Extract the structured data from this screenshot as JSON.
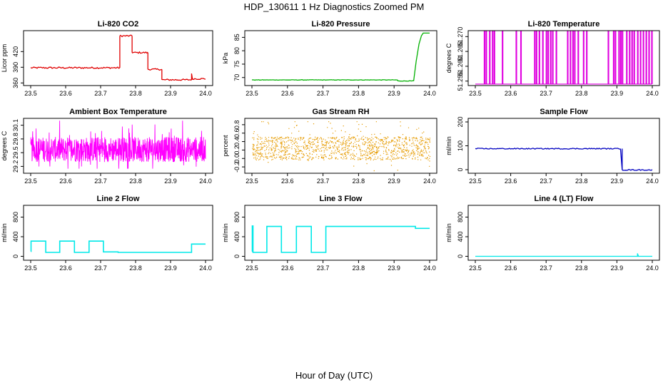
{
  "figure": {
    "title": "HDP_130611  1 Hz Diagnostics Zoomed PM",
    "xlabel": "Hour of Day (UTC)"
  },
  "chart_data": [
    {
      "id": "co2",
      "type": "line",
      "title": "Li-820 CO2",
      "ylabel": "Licor ppm",
      "color": "#e00000",
      "noise": 1.5,
      "xlim": [
        23.5,
        24.0
      ],
      "ylim": [
        355,
        460
      ],
      "xticks": [
        23.5,
        23.6,
        23.7,
        23.8,
        23.9,
        24.0
      ],
      "yticks": [
        360,
        390,
        420
      ],
      "ytick_labels": [
        "360",
        "390",
        "420"
      ],
      "segments": [
        [
          23.5,
          23.755,
          389
        ],
        [
          23.755,
          23.79,
          450
        ],
        [
          23.79,
          23.835,
          418
        ],
        [
          23.835,
          23.875,
          386
        ],
        [
          23.875,
          23.96,
          366
        ],
        [
          23.96,
          24.0,
          368
        ]
      ],
      "spikes": [
        [
          23.96,
          378
        ]
      ]
    },
    {
      "id": "pressure",
      "type": "line",
      "title": "Li-820 Pressure",
      "ylabel": "kPa",
      "color": "#00b000",
      "noise": 0.08,
      "xlim": [
        23.5,
        24.0
      ],
      "ylim": [
        67,
        87.5
      ],
      "xticks": [
        23.5,
        23.6,
        23.7,
        23.8,
        23.9,
        24.0
      ],
      "yticks": [
        70,
        75,
        80,
        85
      ],
      "ytick_labels": [
        "70",
        "75",
        "80",
        "85"
      ],
      "segments": [
        [
          23.5,
          23.91,
          69.1
        ],
        [
          23.91,
          23.955,
          68.7
        ]
      ],
      "ramp": [
        [
          23.955,
          68.7
        ],
        [
          23.962,
          76.0
        ],
        [
          23.97,
          82.5
        ],
        [
          23.977,
          85.6
        ],
        [
          23.982,
          86.6
        ],
        [
          24.0,
          86.6
        ]
      ]
    },
    {
      "id": "licor_temp",
      "type": "line",
      "title": "Li-820 Temperature",
      "ylabel": "degrees C",
      "color": "#e000e0",
      "xlim": [
        23.5,
        24.0
      ],
      "ylim": [
        51.2535,
        51.272
      ],
      "xticks": [
        23.5,
        23.6,
        23.7,
        23.8,
        23.9,
        24.0
      ],
      "yticks": [
        51.255,
        51.26,
        51.265,
        51.27
      ],
      "ytick_labels": [
        "51.255",
        "51.260",
        "51.265",
        "51.270"
      ],
      "base": 51.254,
      "top": 51.272,
      "pulses": [
        23.525,
        23.53,
        23.54,
        23.548,
        23.553,
        23.576,
        23.615,
        23.628,
        23.667,
        23.672,
        23.68,
        23.69,
        23.7,
        23.705,
        23.712,
        23.718,
        23.728,
        23.76,
        23.768,
        23.775,
        23.78,
        23.79,
        23.805,
        23.814,
        23.875,
        23.89,
        23.895,
        23.905,
        23.91,
        23.915,
        23.927,
        23.935,
        23.942,
        23.948,
        23.958,
        23.966,
        23.974,
        23.982,
        23.99,
        23.998
      ]
    },
    {
      "id": "box_temp",
      "type": "line",
      "title": "Ambient Box Temperature",
      "ylabel": "degrees C",
      "color": "#ff00ff",
      "xlim": [
        23.5,
        24.0
      ],
      "ylim": [
        29.05,
        30.25
      ],
      "xticks": [
        23.5,
        23.6,
        23.7,
        23.8,
        23.9,
        24.0
      ],
      "yticks": [
        29.2,
        29.5,
        29.8,
        30.1
      ],
      "ytick_labels": [
        "29.2",
        "29.5",
        "29.8",
        "30.1"
      ],
      "mean": 29.57,
      "noise_min": 29.15,
      "noise_max": 30.2
    },
    {
      "id": "rh",
      "type": "scatter",
      "title": "Gas Stream RH",
      "ylabel": "percent",
      "color": "#e69b00",
      "xlim": [
        23.5,
        24.0
      ],
      "ylim": [
        -0.35,
        0.95
      ],
      "xticks": [
        23.5,
        23.6,
        23.7,
        23.8,
        23.9,
        24.0
      ],
      "yticks": [
        -0.2,
        0.0,
        0.2,
        0.4,
        0.6,
        0.8
      ],
      "ytick_labels": [
        "-0.2",
        "0.0",
        "0.2",
        "0.4",
        "0.6",
        "0.8"
      ],
      "mean": 0.25,
      "noise_min": -0.28,
      "noise_max": 0.88
    },
    {
      "id": "sample_flow",
      "type": "line",
      "title": "Sample Flow",
      "ylabel": "ml/min",
      "color": "#0000c0",
      "noise": 2,
      "xlim": [
        23.5,
        24.0
      ],
      "ylim": [
        -15,
        215
      ],
      "xticks": [
        23.5,
        23.6,
        23.7,
        23.8,
        23.9,
        24.0
      ],
      "yticks": [
        0,
        100,
        200
      ],
      "ytick_labels": [
        "0",
        "100",
        "200"
      ],
      "segments": [
        [
          23.5,
          23.91,
          88
        ],
        [
          23.915,
          24.0,
          -1
        ]
      ],
      "ramp": [
        [
          23.91,
          88
        ],
        [
          23.915,
          -1
        ]
      ]
    },
    {
      "id": "line2",
      "type": "line",
      "title": "Line 2 Flow",
      "ylabel": "ml/min",
      "color": "#00e8e8",
      "noise": 3,
      "xlim": [
        23.5,
        24.0
      ],
      "ylim": [
        -80,
        1040
      ],
      "xticks": [
        23.5,
        23.6,
        23.7,
        23.8,
        23.9,
        24.0
      ],
      "yticks": [
        0,
        400,
        800
      ],
      "ytick_labels": [
        "0",
        "400",
        "800"
      ],
      "step": [
        [
          23.5,
          100
        ],
        [
          23.501,
          310
        ],
        [
          23.543,
          80
        ],
        [
          23.583,
          310
        ],
        [
          23.625,
          80
        ],
        [
          23.667,
          310
        ],
        [
          23.708,
          90
        ],
        [
          23.75,
          80
        ],
        [
          23.96,
          250
        ],
        [
          24.0,
          250
        ]
      ]
    },
    {
      "id": "line3",
      "type": "line",
      "title": "Line 3 Flow",
      "ylabel": "ml/min",
      "color": "#00e8e8",
      "noise": 3,
      "xlim": [
        23.5,
        24.0
      ],
      "ylim": [
        -80,
        1040
      ],
      "xticks": [
        23.5,
        23.6,
        23.7,
        23.8,
        23.9,
        24.0
      ],
      "yticks": [
        0,
        400,
        800
      ],
      "ytick_labels": [
        "0",
        "400",
        "800"
      ],
      "step": [
        [
          23.5,
          100
        ],
        [
          23.501,
          620
        ],
        [
          23.503,
          80
        ],
        [
          23.542,
          610
        ],
        [
          23.583,
          80
        ],
        [
          23.625,
          610
        ],
        [
          23.667,
          80
        ],
        [
          23.708,
          610
        ],
        [
          23.96,
          570
        ],
        [
          24.0,
          570
        ]
      ]
    },
    {
      "id": "line4",
      "type": "line",
      "title": "Line 4 (LT) Flow",
      "ylabel": "ml/min",
      "color": "#00e8e8",
      "noise": 0,
      "xlim": [
        23.5,
        24.0
      ],
      "ylim": [
        -80,
        1040
      ],
      "xticks": [
        23.5,
        23.6,
        23.7,
        23.8,
        23.9,
        24.0
      ],
      "yticks": [
        0,
        400,
        800
      ],
      "ytick_labels": [
        "0",
        "400",
        "800"
      ],
      "segments": [
        [
          23.5,
          24.0,
          0
        ]
      ],
      "spikes": [
        [
          23.958,
          60
        ]
      ]
    }
  ]
}
